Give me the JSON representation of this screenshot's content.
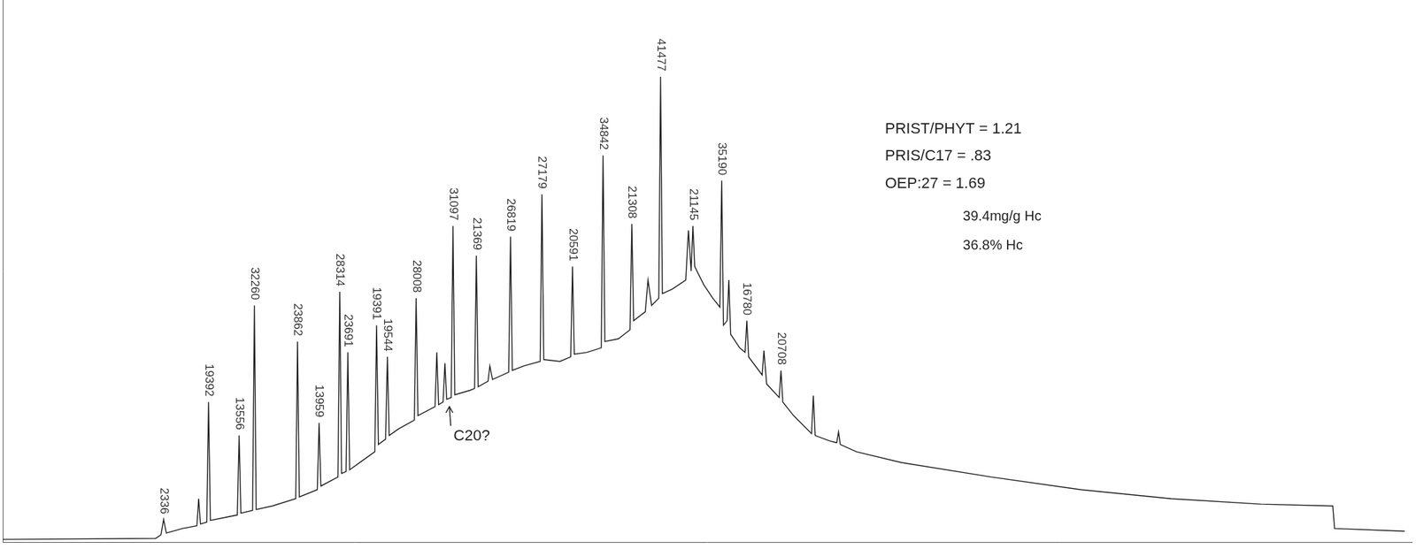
{
  "chart_data": {
    "type": "line",
    "color": "#1a1a1a",
    "x": [
      0,
      170,
      176,
      179,
      182,
      200,
      216,
      218,
      220,
      227,
      229,
      231,
      261,
      263,
      265,
      278,
      280,
      282,
      300,
      326,
      328,
      330,
      350,
      352,
      354,
      373,
      375,
      377,
      382,
      384,
      386,
      400,
      414,
      416,
      418,
      426,
      428,
      430,
      440,
      458,
      460,
      462,
      481,
      483,
      485,
      490,
      492,
      494,
      499,
      501,
      503,
      520,
      525,
      527,
      529,
      540,
      542,
      545,
      563,
      565,
      567,
      580,
      598,
      600,
      602,
      620,
      632,
      634,
      636,
      650,
      666,
      668,
      670,
      685,
      698,
      700,
      702,
      715,
      718,
      722,
      730,
      732,
      734,
      745,
      760,
      763,
      766,
      768,
      770,
      780,
      790,
      798,
      800,
      802,
      806,
      808,
      810,
      820,
      826,
      828,
      830,
      845,
      847,
      850,
      864,
      866,
      868,
      880,
      900,
      902,
      904,
      920,
      928,
      930,
      932,
      950,
      1000,
      1100,
      1200,
      1300,
      1400,
      1480,
      1482,
      1560
    ],
    "values": [
      3,
      4,
      8,
      25,
      10,
      15,
      18,
      48,
      20,
      22,
      155,
      24,
      30,
      118,
      32,
      35,
      262,
      36,
      40,
      48,
      222,
      50,
      58,
      132,
      62,
      72,
      277,
      76,
      78,
      210,
      80,
      90,
      100,
      240,
      108,
      114,
      205,
      118,
      125,
      135,
      270,
      140,
      150,
      210,
      152,
      155,
      198,
      158,
      160,
      350,
      163,
      168,
      170,
      317,
      172,
      178,
      195,
      180,
      188,
      338,
      190,
      195,
      200,
      385,
      202,
      200,
      205,
      305,
      208,
      210,
      215,
      428,
      222,
      225,
      235,
      352,
      245,
      255,
      290,
      262,
      270,
      515,
      275,
      280,
      290,
      345,
      300,
      350,
      305,
      285,
      270,
      260,
      400,
      240,
      245,
      290,
      230,
      215,
      210,
      245,
      205,
      185,
      212,
      175,
      160,
      190,
      155,
      140,
      120,
      162,
      118,
      112,
      110,
      122,
      108,
      100,
      88,
      72,
      58,
      48,
      42,
      40,
      15,
      12
    ],
    "xlim": [
      0,
      1568
    ],
    "ylim": [
      0,
      600
    ],
    "grid": false,
    "tick_labels": false,
    "peak_labels": [
      {
        "x": 179,
        "label": "2336"
      },
      {
        "x": 229,
        "label": "19392"
      },
      {
        "x": 263,
        "label": "13556"
      },
      {
        "x": 280,
        "label": "32260"
      },
      {
        "x": 328,
        "label": "23862"
      },
      {
        "x": 352,
        "label": "13959"
      },
      {
        "x": 375,
        "label": "28314"
      },
      {
        "x": 384,
        "label": "23691"
      },
      {
        "x": 416,
        "label": "19391"
      },
      {
        "x": 428,
        "label": "19544"
      },
      {
        "x": 460,
        "label": "28008"
      },
      {
        "x": 501,
        "label": "31097"
      },
      {
        "x": 527,
        "label": "21369"
      },
      {
        "x": 565,
        "label": "26819"
      },
      {
        "x": 600,
        "label": "27179"
      },
      {
        "x": 634,
        "label": "20591"
      },
      {
        "x": 668,
        "label": "34842"
      },
      {
        "x": 700,
        "label": "21308"
      },
      {
        "x": 732,
        "label": "41477"
      },
      {
        "x": 768,
        "label": "21145"
      },
      {
        "x": 800,
        "label": "35190"
      },
      {
        "x": 828,
        "label": "16780"
      },
      {
        "x": 866,
        "label": "20708"
      }
    ],
    "annotations": [
      "PRIST/PHYT = 1.21",
      "PRIS/C17 = .83",
      "OEP:27 = 1.69",
      "39.4mg/g Hc",
      "36.8% Hc",
      "C20?"
    ]
  }
}
